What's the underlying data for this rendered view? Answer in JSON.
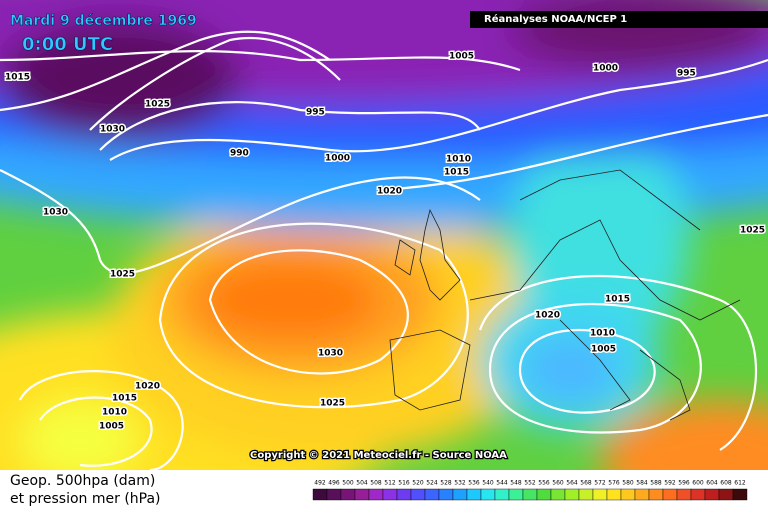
{
  "header": {
    "date": "Mardi 9 décembre 1969",
    "time": "0:00 UTC",
    "source_box": "Réanalyses NOAA/NCEP 1"
  },
  "map": {
    "copyright": "Copyright © 2021 Meteociel.fr - Source NOAA",
    "isobar_labels": [
      1015,
      1025,
      1030,
      995,
      990,
      1000,
      1005,
      1000,
      995,
      1010,
      1015,
      1020,
      1030,
      1025,
      1025,
      1015,
      1020,
      1010,
      1005,
      1030,
      1025,
      1020,
      1015,
      1010,
      1005
    ]
  },
  "legend": {
    "line1": "Geop. 500hpa (dam)",
    "line2": "et pression mer (hPa)",
    "labels": [
      492,
      496,
      500,
      504,
      508,
      512,
      516,
      520,
      524,
      528,
      532,
      536,
      540,
      544,
      548,
      552,
      556,
      560,
      564,
      568,
      572,
      576,
      580,
      584,
      588,
      592,
      596,
      600,
      604,
      608,
      612
    ],
    "colors": [
      "#3c0a3c",
      "#5a0f5a",
      "#781478",
      "#961e96",
      "#a028c8",
      "#8c32e6",
      "#6e3cf0",
      "#5050ff",
      "#3c64ff",
      "#2882ff",
      "#1ea0ff",
      "#1ec8ff",
      "#28e6f0",
      "#32f0c8",
      "#3cf096",
      "#46e664",
      "#50dc3c",
      "#78e632",
      "#a0f028",
      "#c8f028",
      "#f0f028",
      "#ffe11e",
      "#ffc81e",
      "#ffaa1e",
      "#ff8c1e",
      "#ff6e1e",
      "#f05028",
      "#dc3228",
      "#be1e1e",
      "#8c1414",
      "#3c0a0a"
    ]
  }
}
